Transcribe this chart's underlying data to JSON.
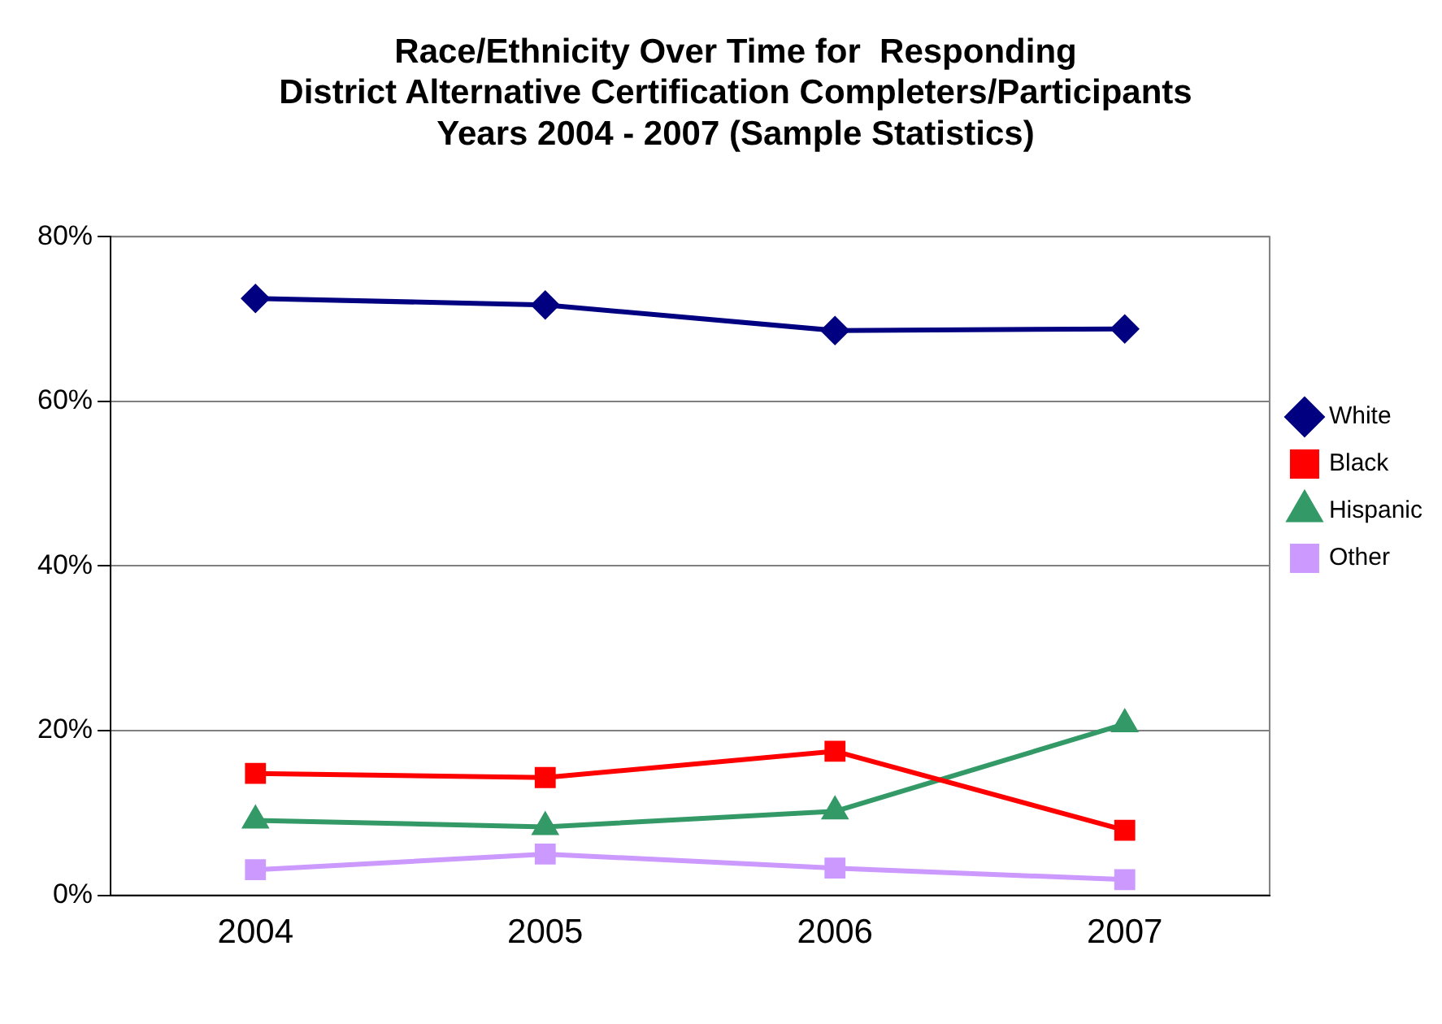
{
  "chart_data": {
    "type": "line",
    "title": [
      "Race/Ethnicity Over Time for  Responding",
      "District Alternative Certification Completers/Participants",
      "Years 2004 - 2007 (Sample Statistics)"
    ],
    "categories": [
      "2004",
      "2005",
      "2006",
      "2007"
    ],
    "series": [
      {
        "name": "White",
        "color": "#000080",
        "marker": "diamond",
        "values": [
          72.5,
          71.7,
          68.6,
          68.8
        ]
      },
      {
        "name": "Black",
        "color": "#ff0000",
        "marker": "square",
        "values": [
          14.8,
          14.3,
          17.5,
          7.9
        ]
      },
      {
        "name": "Hispanic",
        "color": "#339966",
        "marker": "triangle",
        "values": [
          9.1,
          8.3,
          10.2,
          20.8
        ]
      },
      {
        "name": "Other",
        "color": "#cc99ff",
        "marker": "square",
        "values": [
          3.1,
          5.0,
          3.3,
          1.9
        ]
      }
    ],
    "ylim": [
      0,
      80
    ],
    "yticks": [
      {
        "value": 0,
        "label": "0%"
      },
      {
        "value": 20,
        "label": "20%"
      },
      {
        "value": 40,
        "label": "40%"
      },
      {
        "value": 60,
        "label": "60%"
      },
      {
        "value": 80,
        "label": "80%"
      }
    ],
    "grid": "y",
    "legend": "right",
    "line_style": "solid"
  }
}
